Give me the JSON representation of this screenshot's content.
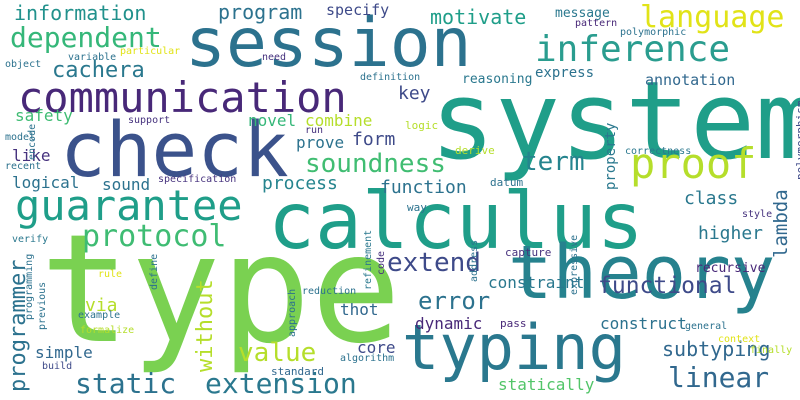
{
  "palette": {
    "dark_purple": "#46317e",
    "purple": "#482878",
    "indigo": "#3e4a89",
    "blue": "#31688e",
    "steel_blue": "#2c728e",
    "teal": "#26828e",
    "sea_green": "#1f9e89",
    "green": "#35b779",
    "lime": "#6ece58",
    "yellow_green": "#b5de2b",
    "yellow": "#e1e318"
  },
  "words": [
    {
      "id": "type",
      "text": "type",
      "color": "#7ad151"
    },
    {
      "id": "system",
      "text": "system",
      "color": "#1f9e89"
    },
    {
      "id": "calculus",
      "text": "calculus",
      "color": "#1f9e89"
    },
    {
      "id": "check",
      "text": "check",
      "color": "#3b528b"
    },
    {
      "id": "session",
      "text": "session",
      "color": "#2c728e"
    },
    {
      "id": "theory",
      "text": "theory",
      "color": "#26828e"
    },
    {
      "id": "typing",
      "text": "typing",
      "color": "#2a788e"
    },
    {
      "id": "communication",
      "text": "communication",
      "color": "#482878"
    },
    {
      "id": "guarantee",
      "text": "guarantee",
      "color": "#1f9e89"
    },
    {
      "id": "inference",
      "text": "inference",
      "color": "#2a9d8f"
    },
    {
      "id": "proof",
      "text": "proof",
      "color": "#b5de2b"
    },
    {
      "id": "language",
      "text": "language",
      "color": "#e1e318"
    },
    {
      "id": "extension",
      "text": "extension",
      "color": "#2a788e"
    },
    {
      "id": "protocol",
      "text": "protocol",
      "color": "#3fbc73"
    },
    {
      "id": "dependent",
      "text": "dependent",
      "color": "#35b779"
    },
    {
      "id": "cachera",
      "text": "cachera",
      "color": "#2a788e"
    },
    {
      "id": "soundness",
      "text": "soundness",
      "color": "#40bd72"
    },
    {
      "id": "static",
      "text": "static",
      "color": "#2c728e"
    },
    {
      "id": "linear",
      "text": "linear",
      "color": "#31688e"
    },
    {
      "id": "extend",
      "text": "extend",
      "color": "#3e4a89"
    },
    {
      "id": "error",
      "text": "error",
      "color": "#2c728e"
    },
    {
      "id": "value",
      "text": "value",
      "color": "#b5de2b"
    },
    {
      "id": "term",
      "text": "term",
      "color": "#25848e"
    },
    {
      "id": "functional",
      "text": "functional",
      "color": "#3e4a89"
    },
    {
      "id": "subtyping",
      "text": "subtyping",
      "color": "#31688e"
    },
    {
      "id": "program",
      "text": "program",
      "color": "#2c728e"
    },
    {
      "id": "motivate",
      "text": "motivate",
      "color": "#1f9e89"
    },
    {
      "id": "information",
      "text": "information",
      "color": "#21918c"
    },
    {
      "id": "process",
      "text": "process",
      "color": "#25848e"
    },
    {
      "id": "function",
      "text": "function",
      "color": "#2c728e"
    },
    {
      "id": "form",
      "text": "form",
      "color": "#3e4a89"
    },
    {
      "id": "class",
      "text": "class",
      "color": "#2a788e"
    },
    {
      "id": "higher",
      "text": "higher",
      "color": "#2a788e"
    },
    {
      "id": "lambda",
      "text": "lambda",
      "color": "#31688e"
    },
    {
      "id": "without",
      "text": "without",
      "color": "#b5de2b"
    },
    {
      "id": "programmer",
      "text": "programmer",
      "color": "#2c728e"
    },
    {
      "id": "key",
      "text": "key",
      "color": "#3e4a89"
    },
    {
      "id": "safety",
      "text": "safety",
      "color": "#3fbc73"
    },
    {
      "id": "novel",
      "text": "novel",
      "color": "#35b779"
    },
    {
      "id": "combine",
      "text": "combine",
      "color": "#b5de2b"
    },
    {
      "id": "prove",
      "text": "prove",
      "color": "#2c728e"
    },
    {
      "id": "like",
      "text": "like",
      "color": "#46327e"
    },
    {
      "id": "logical",
      "text": "logical",
      "color": "#2c728e"
    },
    {
      "id": "sound",
      "text": "sound",
      "color": "#2c728e"
    },
    {
      "id": "simple",
      "text": "simple",
      "color": "#31688e"
    },
    {
      "id": "via",
      "text": "via",
      "color": "#b5de2b"
    },
    {
      "id": "thot",
      "text": "thot",
      "color": "#31688e"
    },
    {
      "id": "core",
      "text": "core",
      "color": "#3e4a89"
    },
    {
      "id": "constraint",
      "text": "constraint",
      "color": "#2a788e"
    },
    {
      "id": "construct",
      "text": "construct",
      "color": "#2c728e"
    },
    {
      "id": "dynamic",
      "text": "dynamic",
      "color": "#482878"
    },
    {
      "id": "statically",
      "text": "statically",
      "color": "#52c569"
    },
    {
      "id": "specify",
      "text": "specify",
      "color": "#3e4a89"
    },
    {
      "id": "message",
      "text": "message",
      "color": "#2a788e"
    },
    {
      "id": "express",
      "text": "express",
      "color": "#2c728e"
    },
    {
      "id": "annotation",
      "text": "annotation",
      "color": "#31688e"
    },
    {
      "id": "reasoning",
      "text": "reasoning",
      "color": "#2a788e"
    },
    {
      "id": "property",
      "text": "property",
      "color": "#2a788e"
    },
    {
      "id": "recursive",
      "text": "recursive",
      "color": "#482878"
    },
    {
      "id": "polymorphism",
      "text": "polymorphism",
      "color": "#3e4a89"
    },
    {
      "id": "polymorphic",
      "text": "polymorphic",
      "color": "#2c728e"
    },
    {
      "id": "pattern",
      "text": "pattern",
      "color": "#482878"
    },
    {
      "id": "correctness",
      "text": "correctness",
      "color": "#2a788e"
    },
    {
      "id": "style",
      "text": "style",
      "color": "#46327e"
    },
    {
      "id": "finally",
      "text": "finally",
      "color": "#b5de2b"
    },
    {
      "id": "context",
      "text": "context",
      "color": "#e1e318"
    },
    {
      "id": "general",
      "text": "general",
      "color": "#2c728e"
    },
    {
      "id": "pass",
      "text": "pass",
      "color": "#482878"
    },
    {
      "id": "expressive",
      "text": "expressive",
      "color": "#2c728e"
    },
    {
      "id": "datum",
      "text": "datum",
      "color": "#2c728e"
    },
    {
      "id": "derive",
      "text": "derive",
      "color": "#b5de2b"
    },
    {
      "id": "logic",
      "text": "logic",
      "color": "#b5de2b"
    },
    {
      "id": "capture",
      "text": "capture",
      "color": "#46327e"
    },
    {
      "id": "way",
      "text": "way",
      "color": "#2c728e"
    },
    {
      "id": "address",
      "text": "address",
      "color": "#2c728e"
    },
    {
      "id": "refinement",
      "text": "refinement",
      "color": "#2a788e"
    },
    {
      "id": "code",
      "text": "code",
      "color": "#46327e"
    },
    {
      "id": "algorithm",
      "text": "algorithm",
      "color": "#2c728e"
    },
    {
      "id": "reduction",
      "text": "reduction",
      "color": "#2c728e"
    },
    {
      "id": "standard",
      "text": "standard",
      "color": "#31688e"
    },
    {
      "id": "approach",
      "text": "approach",
      "color": "#2c728e"
    },
    {
      "id": "define",
      "text": "define",
      "color": "#2c728e"
    },
    {
      "id": "rule",
      "text": "rule",
      "color": "#e1e318"
    },
    {
      "id": "example",
      "text": "example",
      "color": "#2c728e"
    },
    {
      "id": "formalize",
      "text": "formalize",
      "color": "#b5de2b"
    },
    {
      "id": "previous",
      "text": "previous",
      "color": "#2c728e"
    },
    {
      "id": "build",
      "text": "build",
      "color": "#3e4a89"
    },
    {
      "id": "programming",
      "text": "programming",
      "color": "#2c728e"
    },
    {
      "id": "verify",
      "text": "verify",
      "color": "#2a788e"
    },
    {
      "id": "model",
      "text": "model",
      "color": "#2c728e"
    },
    {
      "id": "recent",
      "text": "recent",
      "color": "#2c728e"
    },
    {
      "id": "encode",
      "text": "encode",
      "color": "#2c728e"
    },
    {
      "id": "object",
      "text": "object",
      "color": "#2c728e"
    },
    {
      "id": "variable",
      "text": "variable",
      "color": "#2c728e"
    },
    {
      "id": "particular",
      "text": "particular",
      "color": "#e1e318"
    },
    {
      "id": "need",
      "text": "need",
      "color": "#46327e"
    },
    {
      "id": "support",
      "text": "support",
      "color": "#46327e"
    },
    {
      "id": "specification",
      "text": "specification",
      "color": "#46327e"
    },
    {
      "id": "definition",
      "text": "definition",
      "color": "#2c728e"
    },
    {
      "id": "run",
      "text": "run",
      "color": "#46327e"
    }
  ]
}
